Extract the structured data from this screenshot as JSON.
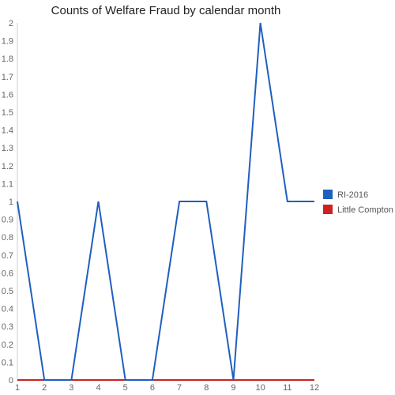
{
  "chart_data": {
    "type": "line",
    "title": "Counts of Welfare Fraud by calendar month",
    "xlabel": "",
    "ylabel": "",
    "x": [
      1,
      2,
      3,
      4,
      5,
      6,
      7,
      8,
      9,
      10,
      11,
      12
    ],
    "x_ticks": [
      "1",
      "2",
      "3",
      "4",
      "5",
      "6",
      "7",
      "8",
      "9",
      "10",
      "11",
      "12"
    ],
    "xlim": [
      1,
      12
    ],
    "ylim": [
      0,
      2
    ],
    "y_ticks": [
      "0",
      "0.1",
      "0.2",
      "0.3",
      "0.4",
      "0.5",
      "0.6",
      "0.7",
      "0.8",
      "0.9",
      "1",
      "1.1",
      "1.2",
      "1.3",
      "1.4",
      "1.5",
      "1.6",
      "1.7",
      "1.8",
      "1.9",
      "2"
    ],
    "grid": false,
    "legend_position": "right",
    "series": [
      {
        "name": "RI-2016",
        "color": "#1f5fbf",
        "values": [
          1,
          0,
          0,
          1,
          0,
          0,
          1,
          1,
          0,
          2,
          1,
          1
        ]
      },
      {
        "name": "Little Compton",
        "color": "#cc2222",
        "values": [
          0,
          0,
          0,
          0,
          0,
          0,
          0,
          0,
          0,
          0,
          0,
          0
        ]
      }
    ]
  }
}
